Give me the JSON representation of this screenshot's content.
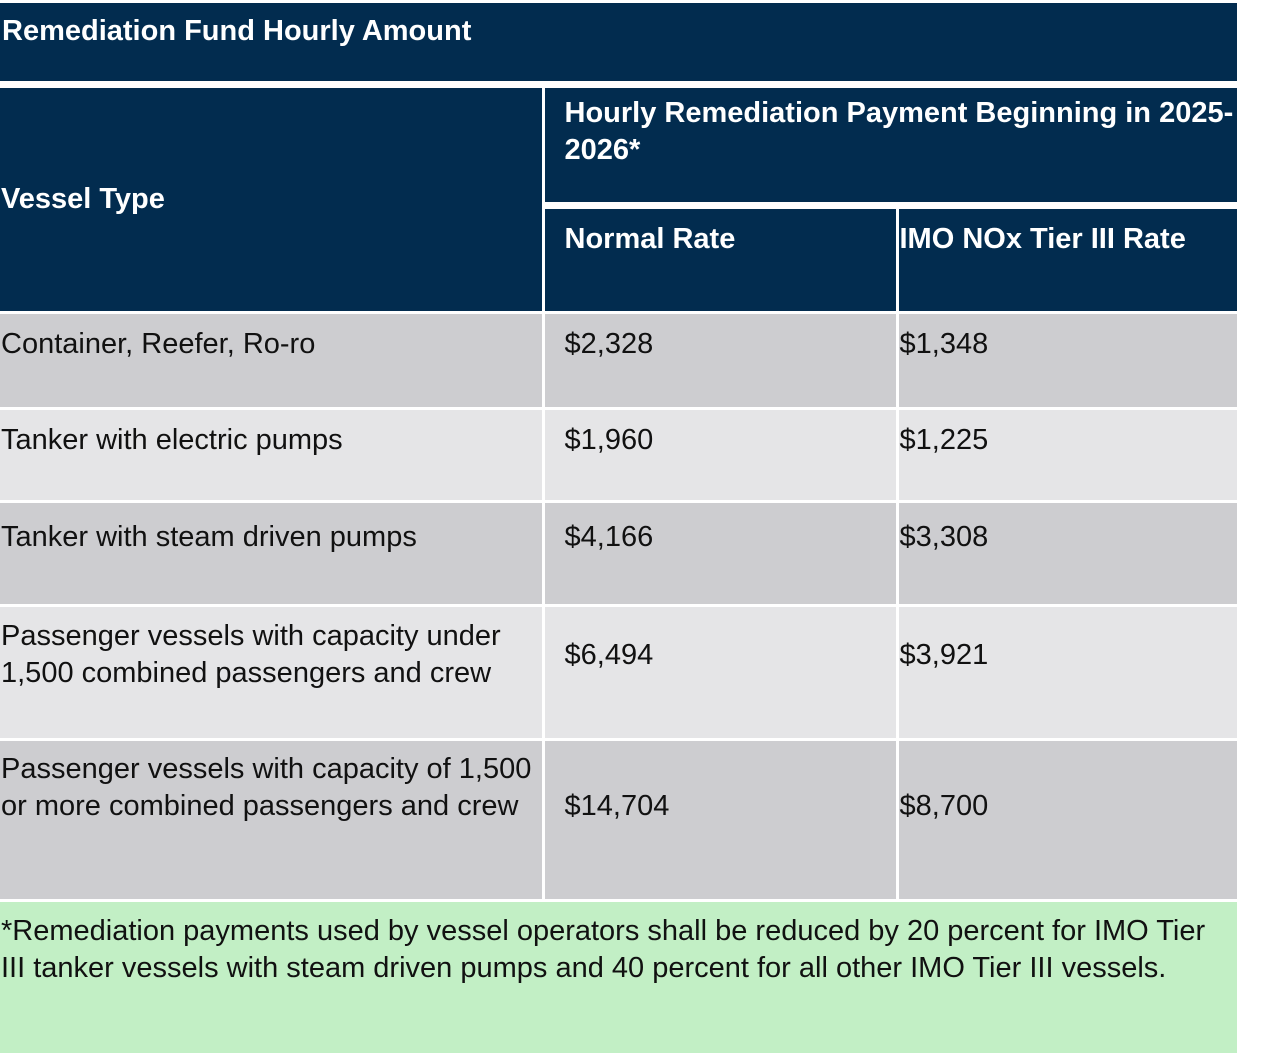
{
  "title": "Remediation Fund Hourly Amount",
  "table": {
    "headers": {
      "vessel_type": "Vessel Type",
      "group": "Hourly Remediation Payment Beginning in 2025-2026*",
      "normal_rate": "Normal Rate",
      "imo_rate": "IMO NOx Tier III Rate"
    },
    "rows": [
      {
        "vessel": "Container, Reefer, Ro-ro",
        "normal": "$2,328",
        "imo": "$1,348"
      },
      {
        "vessel": "Tanker with electric pumps",
        "normal": "$1,960",
        "imo": "$1,225"
      },
      {
        "vessel": "Tanker with steam driven pumps",
        "normal": "$4,166",
        "imo": "$3,308"
      },
      {
        "vessel": "Passenger vessels with capacity under 1,500 combined passengers and crew",
        "normal": "$6,494",
        "imo": "$3,921"
      },
      {
        "vessel": "Passenger vessels with capacity of 1,500 or more combined passengers and crew",
        "normal": "$14,704",
        "imo": "$8,700"
      }
    ]
  },
  "footnote": "*Remediation payments used by vessel operators shall be reduced by 20 percent for IMO Tier III tanker vessels with steam driven pumps and 40 percent for all other IMO Tier III vessels.",
  "colors": {
    "header_navy": "#022c4f",
    "row_dark": "#cdcdd0",
    "row_light": "#e5e5e7",
    "footnote_green": "#c2efc5"
  }
}
